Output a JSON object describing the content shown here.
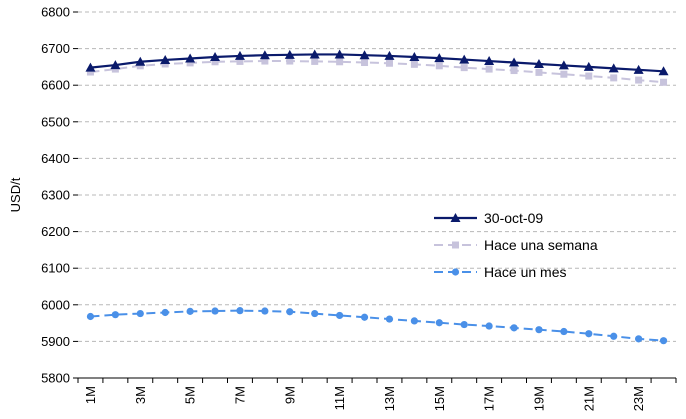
{
  "chart_data": {
    "type": "line",
    "ylabel": "USD/t",
    "xlabel": "",
    "ylim": [
      5800,
      6800
    ],
    "yticks": [
      5800,
      5900,
      6000,
      6100,
      6200,
      6300,
      6400,
      6500,
      6600,
      6700,
      6800
    ],
    "grid": "horizontal-dashed",
    "legend_position": "right-middle",
    "x": [
      "1M",
      "2M",
      "3M",
      "4M",
      "5M",
      "6M",
      "7M",
      "8M",
      "9M",
      "10M",
      "11M",
      "12M",
      "13M",
      "14M",
      "15M",
      "16M",
      "17M",
      "18M",
      "19M",
      "20M",
      "21M",
      "22M",
      "23M",
      "24M"
    ],
    "xtick_labels": [
      "1M",
      "3M",
      "5M",
      "7M",
      "9M",
      "11M",
      "13M",
      "15M",
      "17M",
      "19M",
      "21M",
      "23M"
    ],
    "series": [
      {
        "name": "30-oct-09",
        "color": "#0a1a6b",
        "marker": "triangle",
        "dash": "solid",
        "values": [
          6648,
          6655,
          6664,
          6669,
          6673,
          6677,
          6680,
          6682,
          6683,
          6684,
          6684,
          6682,
          6680,
          6677,
          6674,
          6670,
          6666,
          6662,
          6658,
          6654,
          6650,
          6646,
          6642,
          6638
        ]
      },
      {
        "name": "Hace una semana",
        "color": "#c7c3dc",
        "marker": "square",
        "dash": "dashed",
        "values": [
          6636,
          6644,
          6653,
          6658,
          6661,
          6664,
          6665,
          6666,
          6666,
          6665,
          6664,
          6662,
          6660,
          6657,
          6653,
          6648,
          6644,
          6640,
          6635,
          6630,
          6625,
          6620,
          6614,
          6608
        ]
      },
      {
        "name": "Hace un mes",
        "color": "#4a90e8",
        "marker": "circle",
        "dash": "dashed",
        "values": [
          5968,
          5973,
          5976,
          5979,
          5982,
          5983,
          5984,
          5983,
          5981,
          5976,
          5971,
          5966,
          5961,
          5956,
          5951,
          5946,
          5942,
          5937,
          5932,
          5927,
          5921,
          5914,
          5907,
          5902
        ]
      }
    ]
  }
}
